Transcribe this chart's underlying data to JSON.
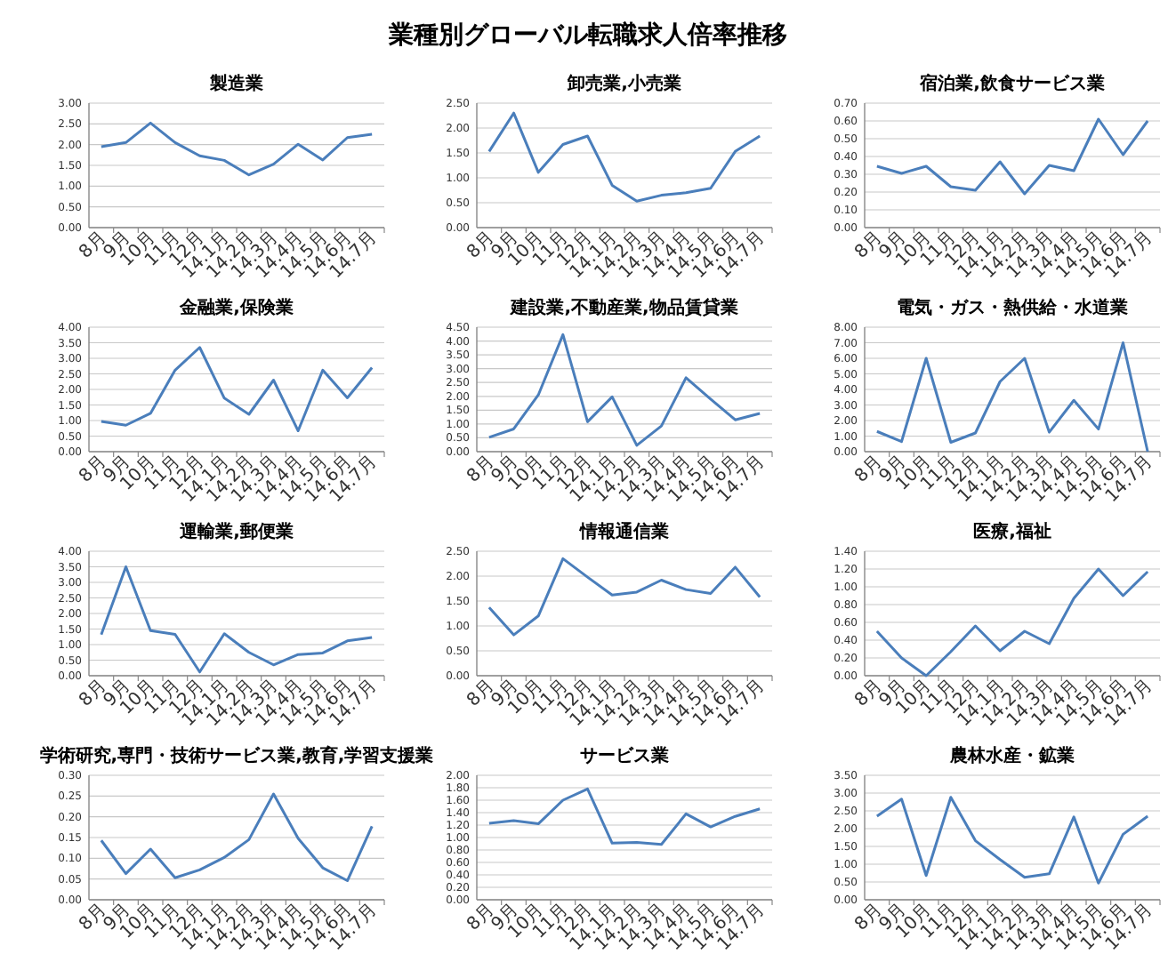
{
  "chart_data": [
    {
      "type": "line",
      "title": "業種別グローバル転職求人倍率推移",
      "subtitle": "製造業",
      "categories": [
        "8月",
        "9月",
        "10月",
        "11月",
        "12月",
        "14.1月",
        "14.2月",
        "14.3月",
        "14.4月",
        "14.5月",
        "14.6月",
        "14.7月"
      ],
      "values": [
        1.95,
        2.05,
        2.52,
        2.05,
        1.73,
        1.62,
        1.27,
        1.53,
        2.01,
        1.63,
        2.17,
        2.25
      ],
      "color": "#4a7ebb",
      "ylim": [
        0,
        3
      ],
      "yticks": [
        {
          "value": 0,
          "label": "0.00"
        },
        {
          "value": 0.5,
          "label": "0.50"
        },
        {
          "value": 1,
          "label": "1.00"
        },
        {
          "value": 1.5,
          "label": "1.50"
        },
        {
          "value": 2,
          "label": "2.00"
        },
        {
          "value": 2.5,
          "label": "2.50"
        },
        {
          "value": 3,
          "label": "3.00"
        }
      ],
      "grid": "y",
      "legend": false,
      "marker": "none"
    },
    {
      "type": "line",
      "title": "卸売業,小売業",
      "categories": [
        "8月",
        "9月",
        "10月",
        "11月",
        "12月",
        "14.1月",
        "14.2月",
        "14.3月",
        "14.4月",
        "14.5月",
        "14.6月",
        "14.7月"
      ],
      "values": [
        1.53,
        2.3,
        1.11,
        1.67,
        1.84,
        0.85,
        0.53,
        0.65,
        0.7,
        0.79,
        1.53,
        1.84
      ],
      "color": "#4a7ebb",
      "ylim": [
        0,
        2.5
      ],
      "yticks": [
        {
          "value": 0,
          "label": "0.00"
        },
        {
          "value": 0.5,
          "label": "0.50"
        },
        {
          "value": 1,
          "label": "1.00"
        },
        {
          "value": 1.5,
          "label": "1.50"
        },
        {
          "value": 2,
          "label": "2.00"
        },
        {
          "value": 2.5,
          "label": "2.50"
        }
      ],
      "grid": "y",
      "legend": false,
      "marker": "none"
    },
    {
      "type": "line",
      "title": "宿泊業,飲食サービス業",
      "categories": [
        "8月",
        "9月",
        "10月",
        "11月",
        "12月",
        "14.1月",
        "14.2月",
        "14.3月",
        "14.4月",
        "14.5月",
        "14.6月",
        "14.7月"
      ],
      "values": [
        0.345,
        0.305,
        0.345,
        0.23,
        0.21,
        0.37,
        0.19,
        0.35,
        0.32,
        0.61,
        0.41,
        0.6
      ],
      "color": "#4a7ebb",
      "ylim": [
        0,
        0.7
      ],
      "yticks": [
        {
          "value": 0,
          "label": "0.00"
        },
        {
          "value": 0.1,
          "label": "0.10"
        },
        {
          "value": 0.2,
          "label": "0.20"
        },
        {
          "value": 0.3,
          "label": "0.30"
        },
        {
          "value": 0.4,
          "label": "0.40"
        },
        {
          "value": 0.5,
          "label": "0.50"
        },
        {
          "value": 0.6,
          "label": "0.60"
        },
        {
          "value": 0.7,
          "label": "0.70"
        }
      ],
      "grid": "y",
      "legend": false,
      "marker": "none"
    },
    {
      "type": "line",
      "title": "金融業,保険業",
      "categories": [
        "8月",
        "9月",
        "10月",
        "11月",
        "12月",
        "14.1月",
        "14.2月",
        "14.3月",
        "14.4月",
        "14.5月",
        "14.6月",
        "14.7月"
      ],
      "values": [
        0.97,
        0.85,
        1.23,
        2.62,
        3.35,
        1.72,
        1.2,
        2.3,
        0.67,
        2.62,
        1.73,
        2.7
      ],
      "color": "#4a7ebb",
      "ylim": [
        0,
        4
      ],
      "yticks": [
        {
          "value": 0,
          "label": "0.00"
        },
        {
          "value": 0.5,
          "label": "0.50"
        },
        {
          "value": 1,
          "label": "1.00"
        },
        {
          "value": 1.5,
          "label": "1.50"
        },
        {
          "value": 2,
          "label": "2.00"
        },
        {
          "value": 2.5,
          "label": "2.50"
        },
        {
          "value": 3,
          "label": "3.00"
        },
        {
          "value": 3.5,
          "label": "3.50"
        },
        {
          "value": 4,
          "label": "4.00"
        }
      ],
      "grid": "y",
      "legend": false,
      "marker": "none"
    },
    {
      "type": "line",
      "title": "建設業,不動産業,物品賃貸業",
      "categories": [
        "8月",
        "9月",
        "10月",
        "11月",
        "12月",
        "14.1月",
        "14.2月",
        "14.3月",
        "14.4月",
        "14.5月",
        "14.6月",
        "14.7月"
      ],
      "values": [
        0.52,
        0.82,
        2.05,
        4.23,
        1.08,
        1.98,
        0.23,
        0.93,
        2.67,
        1.9,
        1.15,
        1.38
      ],
      "color": "#4a7ebb",
      "ylim": [
        0,
        4.5
      ],
      "yticks": [
        {
          "value": 0,
          "label": "0.00"
        },
        {
          "value": 0.5,
          "label": "0.50"
        },
        {
          "value": 1,
          "label": "1.00"
        },
        {
          "value": 1.5,
          "label": "1.50"
        },
        {
          "value": 2,
          "label": "2.00"
        },
        {
          "value": 2.5,
          "label": "2.50"
        },
        {
          "value": 3,
          "label": "3.00"
        },
        {
          "value": 3.5,
          "label": "3.50"
        },
        {
          "value": 4,
          "label": "4.00"
        },
        {
          "value": 4.5,
          "label": "4.50"
        }
      ],
      "grid": "y",
      "legend": false,
      "marker": "none"
    },
    {
      "type": "line",
      "title": "電気・ガス・熱供給・水道業",
      "categories": [
        "8月",
        "9月",
        "10月",
        "11月",
        "12月",
        "14.1月",
        "14.2月",
        "14.3月",
        "14.4月",
        "14.5月",
        "14.6月",
        "14.7月"
      ],
      "values": [
        1.3,
        0.65,
        6.0,
        0.6,
        1.2,
        4.5,
        6.0,
        1.25,
        3.3,
        1.45,
        7.0,
        0.0
      ],
      "color": "#4a7ebb",
      "ylim": [
        0,
        8
      ],
      "yticks": [
        {
          "value": 0,
          "label": "0.00"
        },
        {
          "value": 1,
          "label": "1.00"
        },
        {
          "value": 2,
          "label": "2.00"
        },
        {
          "value": 3,
          "label": "3.00"
        },
        {
          "value": 4,
          "label": "4.00"
        },
        {
          "value": 5,
          "label": "5.00"
        },
        {
          "value": 6,
          "label": "6.00"
        },
        {
          "value": 7,
          "label": "7.00"
        },
        {
          "value": 8,
          "label": "8.00"
        }
      ],
      "grid": "y",
      "legend": false,
      "marker": "none"
    },
    {
      "type": "line",
      "title": "運輸業,郵便業",
      "categories": [
        "8月",
        "9月",
        "10月",
        "11月",
        "12月",
        "14.1月",
        "14.2月",
        "14.3月",
        "14.4月",
        "14.5月",
        "14.6月",
        "14.7月"
      ],
      "values": [
        1.32,
        3.5,
        1.45,
        1.33,
        0.12,
        1.35,
        0.75,
        0.35,
        0.68,
        0.73,
        1.12,
        1.23
      ],
      "color": "#4a7ebb",
      "ylim": [
        0,
        4
      ],
      "yticks": [
        {
          "value": 0,
          "label": "0.00"
        },
        {
          "value": 0.5,
          "label": "0.50"
        },
        {
          "value": 1,
          "label": "1.00"
        },
        {
          "value": 1.5,
          "label": "1.50"
        },
        {
          "value": 2,
          "label": "2.00"
        },
        {
          "value": 2.5,
          "label": "2.50"
        },
        {
          "value": 3,
          "label": "3.00"
        },
        {
          "value": 3.5,
          "label": "3.50"
        },
        {
          "value": 4,
          "label": "4.00"
        }
      ],
      "grid": "y",
      "legend": false,
      "marker": "none"
    },
    {
      "type": "line",
      "title": "情報通信業",
      "categories": [
        "8月",
        "9月",
        "10月",
        "11月",
        "12月",
        "14.1月",
        "14.2月",
        "14.3月",
        "14.4月",
        "14.5月",
        "14.6月",
        "14.7月"
      ],
      "values": [
        1.37,
        0.82,
        1.2,
        2.35,
        1.98,
        1.62,
        1.68,
        1.92,
        1.73,
        1.65,
        2.18,
        1.58
      ],
      "color": "#4a7ebb",
      "ylim": [
        0,
        2.5
      ],
      "yticks": [
        {
          "value": 0,
          "label": "0.00"
        },
        {
          "value": 0.5,
          "label": "0.50"
        },
        {
          "value": 1,
          "label": "1.00"
        },
        {
          "value": 1.5,
          "label": "1.50"
        },
        {
          "value": 2,
          "label": "2.00"
        },
        {
          "value": 2.5,
          "label": "2.50"
        }
      ],
      "grid": "y",
      "legend": false,
      "marker": "none"
    },
    {
      "type": "line",
      "title": "医療,福祉",
      "categories": [
        "8月",
        "9月",
        "10月",
        "11月",
        "12月",
        "14.1月",
        "14.2月",
        "14.3月",
        "14.4月",
        "14.5月",
        "14.6月",
        "14.7月"
      ],
      "values": [
        0.5,
        0.2,
        0.0,
        0.27,
        0.56,
        0.28,
        0.5,
        0.36,
        0.87,
        1.2,
        0.9,
        1.17
      ],
      "color": "#4a7ebb",
      "ylim": [
        0,
        1.4
      ],
      "yticks": [
        {
          "value": 0,
          "label": "0.00"
        },
        {
          "value": 0.2,
          "label": "0.20"
        },
        {
          "value": 0.4,
          "label": "0.40"
        },
        {
          "value": 0.6,
          "label": "0.60"
        },
        {
          "value": 0.8,
          "label": "0.80"
        },
        {
          "value": 1,
          "label": "1.00"
        },
        {
          "value": 1.2,
          "label": "1.20"
        },
        {
          "value": 1.4,
          "label": "1.40"
        }
      ],
      "grid": "y",
      "legend": false,
      "marker": "none"
    },
    {
      "type": "line",
      "title": "学術研究,専門・技術サービス業,教育,学習支援業",
      "categories": [
        "8月",
        "9月",
        "10月",
        "11月",
        "12月",
        "14.1月",
        "14.2月",
        "14.3月",
        "14.4月",
        "14.5月",
        "14.6月",
        "14.7月"
      ],
      "values": [
        0.143,
        0.063,
        0.122,
        0.053,
        0.072,
        0.102,
        0.145,
        0.255,
        0.148,
        0.077,
        0.046,
        0.177
      ],
      "color": "#4a7ebb",
      "ylim": [
        0,
        0.3
      ],
      "yticks": [
        {
          "value": 0,
          "label": "0.00"
        },
        {
          "value": 0.05,
          "label": "0.05"
        },
        {
          "value": 0.1,
          "label": "0.10"
        },
        {
          "value": 0.15,
          "label": "0.15"
        },
        {
          "value": 0.2,
          "label": "0.20"
        },
        {
          "value": 0.25,
          "label": "0.25"
        },
        {
          "value": 0.3,
          "label": "0.30"
        }
      ],
      "grid": "y",
      "legend": false,
      "marker": "none"
    },
    {
      "type": "line",
      "title": "サービス業",
      "categories": [
        "8月",
        "9月",
        "10月",
        "11月",
        "12月",
        "14.1月",
        "14.2月",
        "14.3月",
        "14.4月",
        "14.5月",
        "14.6月",
        "14.7月"
      ],
      "values": [
        1.23,
        1.27,
        1.22,
        1.6,
        1.78,
        0.91,
        0.92,
        0.89,
        1.38,
        1.17,
        1.34,
        1.46
      ],
      "color": "#4a7ebb",
      "ylim": [
        0,
        2
      ],
      "yticks": [
        {
          "value": 0,
          "label": "0.00"
        },
        {
          "value": 0.2,
          "label": "0.20"
        },
        {
          "value": 0.4,
          "label": "0.40"
        },
        {
          "value": 0.6,
          "label": "0.60"
        },
        {
          "value": 0.8,
          "label": "0.80"
        },
        {
          "value": 1,
          "label": "1.00"
        },
        {
          "value": 1.2,
          "label": "1.20"
        },
        {
          "value": 1.4,
          "label": "1.40"
        },
        {
          "value": 1.6,
          "label": "1.60"
        },
        {
          "value": 1.8,
          "label": "1.80"
        },
        {
          "value": 2,
          "label": "2.00"
        }
      ],
      "grid": "y",
      "legend": false,
      "marker": "none"
    },
    {
      "type": "line",
      "title": "農林水産・鉱業",
      "categories": [
        "8月",
        "9月",
        "10月",
        "11月",
        "12月",
        "14.1月",
        "14.2月",
        "14.3月",
        "14.4月",
        "14.5月",
        "14.6月",
        "14.7月"
      ],
      "values": [
        2.35,
        2.83,
        0.68,
        2.88,
        1.66,
        1.13,
        0.63,
        0.73,
        2.33,
        0.47,
        1.84,
        2.35
      ],
      "color": "#4a7ebb",
      "ylim": [
        0,
        3.5
      ],
      "yticks": [
        {
          "value": 0,
          "label": "0.00"
        },
        {
          "value": 0.5,
          "label": "0.50"
        },
        {
          "value": 1,
          "label": "1.00"
        },
        {
          "value": 1.5,
          "label": "1.50"
        },
        {
          "value": 2,
          "label": "2.00"
        },
        {
          "value": 2.5,
          "label": "2.50"
        },
        {
          "value": 3,
          "label": "3.00"
        },
        {
          "value": 3.5,
          "label": "3.50"
        }
      ],
      "grid": "y",
      "legend": false,
      "marker": "none"
    }
  ]
}
